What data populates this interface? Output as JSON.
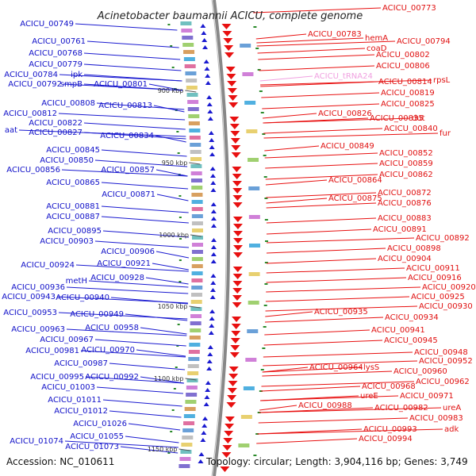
{
  "title": "Acinetobacter baumannii ACICU, complete genome",
  "accession": "Accession: NC_010611",
  "topology": "Topology: circular; Length: 3,904,116 bp; Genes: 3,749",
  "colors": {
    "left_strand": "#1a1ad0",
    "right_strand": "#e81010",
    "trna": "#f0a0e0",
    "backbone": "#888888",
    "tick": "#2a8a2a"
  },
  "kbp_markers": [
    "900 kbp",
    "950 kbp",
    "1000 kbp",
    "1050 kbp",
    "1100 kbp",
    "1150 kbp"
  ],
  "left_labels": [
    {
      "text": "ACICU_00749"
    },
    {
      "text": "ACICU_00761"
    },
    {
      "text": "ACICU_00768"
    },
    {
      "text": "ACICU_00779"
    },
    {
      "text": "ACICU_00784"
    },
    {
      "text": "ipk"
    },
    {
      "text": "ACICU_00792"
    },
    {
      "text": "smpB"
    },
    {
      "text": "ACICU_00801"
    },
    {
      "text": "ACICU_00808"
    },
    {
      "text": "ACICU_00813"
    },
    {
      "text": "ACICU_00812"
    },
    {
      "text": "ACICU_00822"
    },
    {
      "text": "aat"
    },
    {
      "text": "ACICU_00827"
    },
    {
      "text": "ACICU_00834"
    },
    {
      "text": "ACICU_00845"
    },
    {
      "text": "ACICU_00850"
    },
    {
      "text": "ACICU_00856"
    },
    {
      "text": "ACICU_00857"
    },
    {
      "text": "ACICU_00865"
    },
    {
      "text": "ACICU_00871"
    },
    {
      "text": "ACICU_00881"
    },
    {
      "text": "ACICU_00887"
    },
    {
      "text": "ACICU_00895"
    },
    {
      "text": "ACICU_00903"
    },
    {
      "text": "ACICU_00906"
    },
    {
      "text": "ACICU_00924"
    },
    {
      "text": "ACICU_00921"
    },
    {
      "text": "metH"
    },
    {
      "text": "ACICU_00928"
    },
    {
      "text": "ACICU_00936"
    },
    {
      "text": "ACICU_00943"
    },
    {
      "text": "ACICU_00940"
    },
    {
      "text": "ACICU_00953"
    },
    {
      "text": "ACICU_00949"
    },
    {
      "text": "ACICU_00963"
    },
    {
      "text": "ACICU_00958"
    },
    {
      "text": "ACICU_00967"
    },
    {
      "text": "ACICU_00981"
    },
    {
      "text": "ACICU_00970"
    },
    {
      "text": "ACICU_00987"
    },
    {
      "text": "ACICU_00995"
    },
    {
      "text": "ACICU_00992"
    },
    {
      "text": "ACICU_01003"
    },
    {
      "text": "ACICU_01011"
    },
    {
      "text": "ACICU_01012"
    },
    {
      "text": "ACICU_01026"
    },
    {
      "text": "ACICU_01055"
    },
    {
      "text": "ACICU_01074"
    },
    {
      "text": "ACICU_01073"
    }
  ],
  "right_labels": [
    {
      "text": "ACICU_00773"
    },
    {
      "text": "ACICU_00783"
    },
    {
      "text": "hemA"
    },
    {
      "text": "ACICU_00794"
    },
    {
      "text": "coaD"
    },
    {
      "text": "ACICU_00802"
    },
    {
      "text": "ACICU_00806"
    },
    {
      "text": "ACICU_tRNA24"
    },
    {
      "text": "rpsL"
    },
    {
      "text": "ACICU_00814"
    },
    {
      "text": "ACICU_00819"
    },
    {
      "text": "ACICU_00825"
    },
    {
      "text": "ACICU_00826"
    },
    {
      "text": "ACICU_00835"
    },
    {
      "text": "dut"
    },
    {
      "text": "ACICU_00840"
    },
    {
      "text": "fur"
    },
    {
      "text": "ACICU_00849"
    },
    {
      "text": "ACICU_00852"
    },
    {
      "text": "ACICU_00859"
    },
    {
      "text": "ACICU_00862"
    },
    {
      "text": "ACICU_00864"
    },
    {
      "text": "ACICU_00872"
    },
    {
      "text": "ACICU_00875"
    },
    {
      "text": "ACICU_00876"
    },
    {
      "text": "ACICU_00883"
    },
    {
      "text": "ACICU_00891"
    },
    {
      "text": "ACICU_00892"
    },
    {
      "text": "ACICU_00898"
    },
    {
      "text": "ACICU_00904"
    },
    {
      "text": "ACICU_00911"
    },
    {
      "text": "ACICU_00916"
    },
    {
      "text": "ACICU_00920"
    },
    {
      "text": "ACICU_00925"
    },
    {
      "text": "ACICU_00930"
    },
    {
      "text": "ACICU_00935"
    },
    {
      "text": "ACICU_00934"
    },
    {
      "text": "ACICU_00941"
    },
    {
      "text": "ACICU_00945"
    },
    {
      "text": "ACICU_00948"
    },
    {
      "text": "ACICU_00952"
    },
    {
      "text": "ACICU_00964"
    },
    {
      "text": "lysS"
    },
    {
      "text": "ACICU_00960"
    },
    {
      "text": "ACICU_00962"
    },
    {
      "text": "ACICU_00968"
    },
    {
      "text": "ureE"
    },
    {
      "text": "ACICU_00971"
    },
    {
      "text": "ACICU_00988"
    },
    {
      "text": "ACICU_00982"
    },
    {
      "text": "ureA"
    },
    {
      "text": "ACICU_00983"
    },
    {
      "text": "adk"
    },
    {
      "text": "ACICU_00993"
    },
    {
      "text": "ACICU_00994"
    }
  ]
}
